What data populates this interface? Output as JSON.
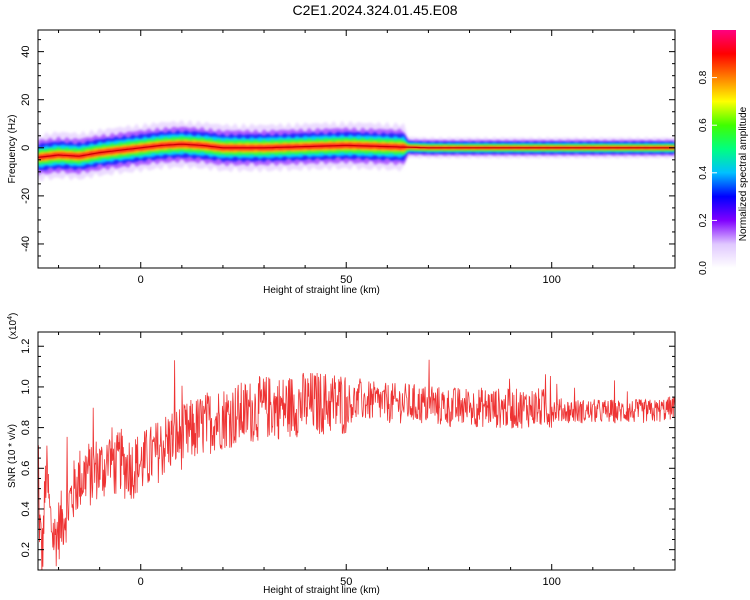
{
  "title": "C2E1.2024.324.01.45.E08",
  "chart_data": [
    {
      "type": "heatmap",
      "xlabel": "Height of straight line (km)",
      "ylabel": "Frequency (Hz)",
      "xlim": [
        -25,
        130
      ],
      "ylim": [
        -50,
        49
      ],
      "xticks": [
        0,
        50,
        100
      ],
      "yticks": [
        -40,
        -20,
        0,
        20,
        40
      ],
      "colorbar": {
        "label": "Normalized spectral amplitude",
        "range": [
          0,
          1
        ],
        "ticks": [
          "0.0",
          "0.2",
          "0.4",
          "0.6",
          "0.8"
        ],
        "colors": [
          "#ffffff",
          "#e0c8ff",
          "#8000ff",
          "#0000ff",
          "#00c0ff",
          "#00ff80",
          "#40ff00",
          "#ffff00",
          "#ff8000",
          "#ff0000",
          "#ff0080"
        ]
      },
      "ridge": {
        "height_km": [
          -25,
          -20,
          -15,
          -10,
          -5,
          0,
          5,
          10,
          15,
          20,
          30,
          40,
          50,
          60,
          70,
          80,
          90,
          100,
          110,
          120,
          130
        ],
        "frequency_hz": [
          -4,
          -3,
          -3.5,
          -2,
          -1,
          0,
          1,
          1.5,
          1,
          0,
          0,
          0.5,
          1,
          0.5,
          0,
          0,
          0,
          0,
          0,
          0,
          0
        ]
      }
    },
    {
      "type": "line",
      "xlabel": "Height of straight line (km)",
      "ylabel": "SNR (10 * v/v)",
      "scale_label": "(x10",
      "scale_exponent": "4",
      "scale_suffix": ")",
      "xlim": [
        -25,
        130
      ],
      "ylim": [
        0.1,
        1.27
      ],
      "xticks": [
        0,
        50,
        100
      ],
      "yticks": [
        "0.2",
        "0.4",
        "0.6",
        "0.8",
        "1.0",
        "1.2"
      ],
      "color": "#ee3333",
      "series": [
        {
          "x": [
            -25,
            -24,
            -23,
            -22,
            -21,
            -20,
            -19,
            -18,
            -17,
            -16,
            -15,
            -14,
            -13,
            -12,
            -11,
            -10,
            -9,
            -8,
            -7,
            -6,
            -5,
            -4,
            -3,
            -2,
            -1,
            0,
            2,
            4,
            6,
            8,
            10,
            12,
            14,
            16,
            18,
            20,
            25,
            30,
            35,
            40,
            45,
            50,
            55,
            60,
            65,
            70,
            75,
            80,
            85,
            90,
            95,
            100,
            105,
            110,
            115,
            120,
            125,
            130
          ],
          "y": [
            0.45,
            0.15,
            0.6,
            0.35,
            0.25,
            0.3,
            0.35,
            0.4,
            0.45,
            0.5,
            0.55,
            0.55,
            0.6,
            0.55,
            0.6,
            0.6,
            0.6,
            0.62,
            0.65,
            0.6,
            0.65,
            0.6,
            0.62,
            0.6,
            0.62,
            0.62,
            0.65,
            0.68,
            0.72,
            0.75,
            0.75,
            0.78,
            0.8,
            0.82,
            0.84,
            0.85,
            0.87,
            0.9,
            0.9,
            0.92,
            0.92,
            0.92,
            0.93,
            0.92,
            0.92,
            0.91,
            0.9,
            0.9,
            0.9,
            0.89,
            0.9,
            0.89,
            0.88,
            0.88,
            0.88,
            0.88,
            0.88,
            0.9
          ]
        }
      ]
    }
  ]
}
